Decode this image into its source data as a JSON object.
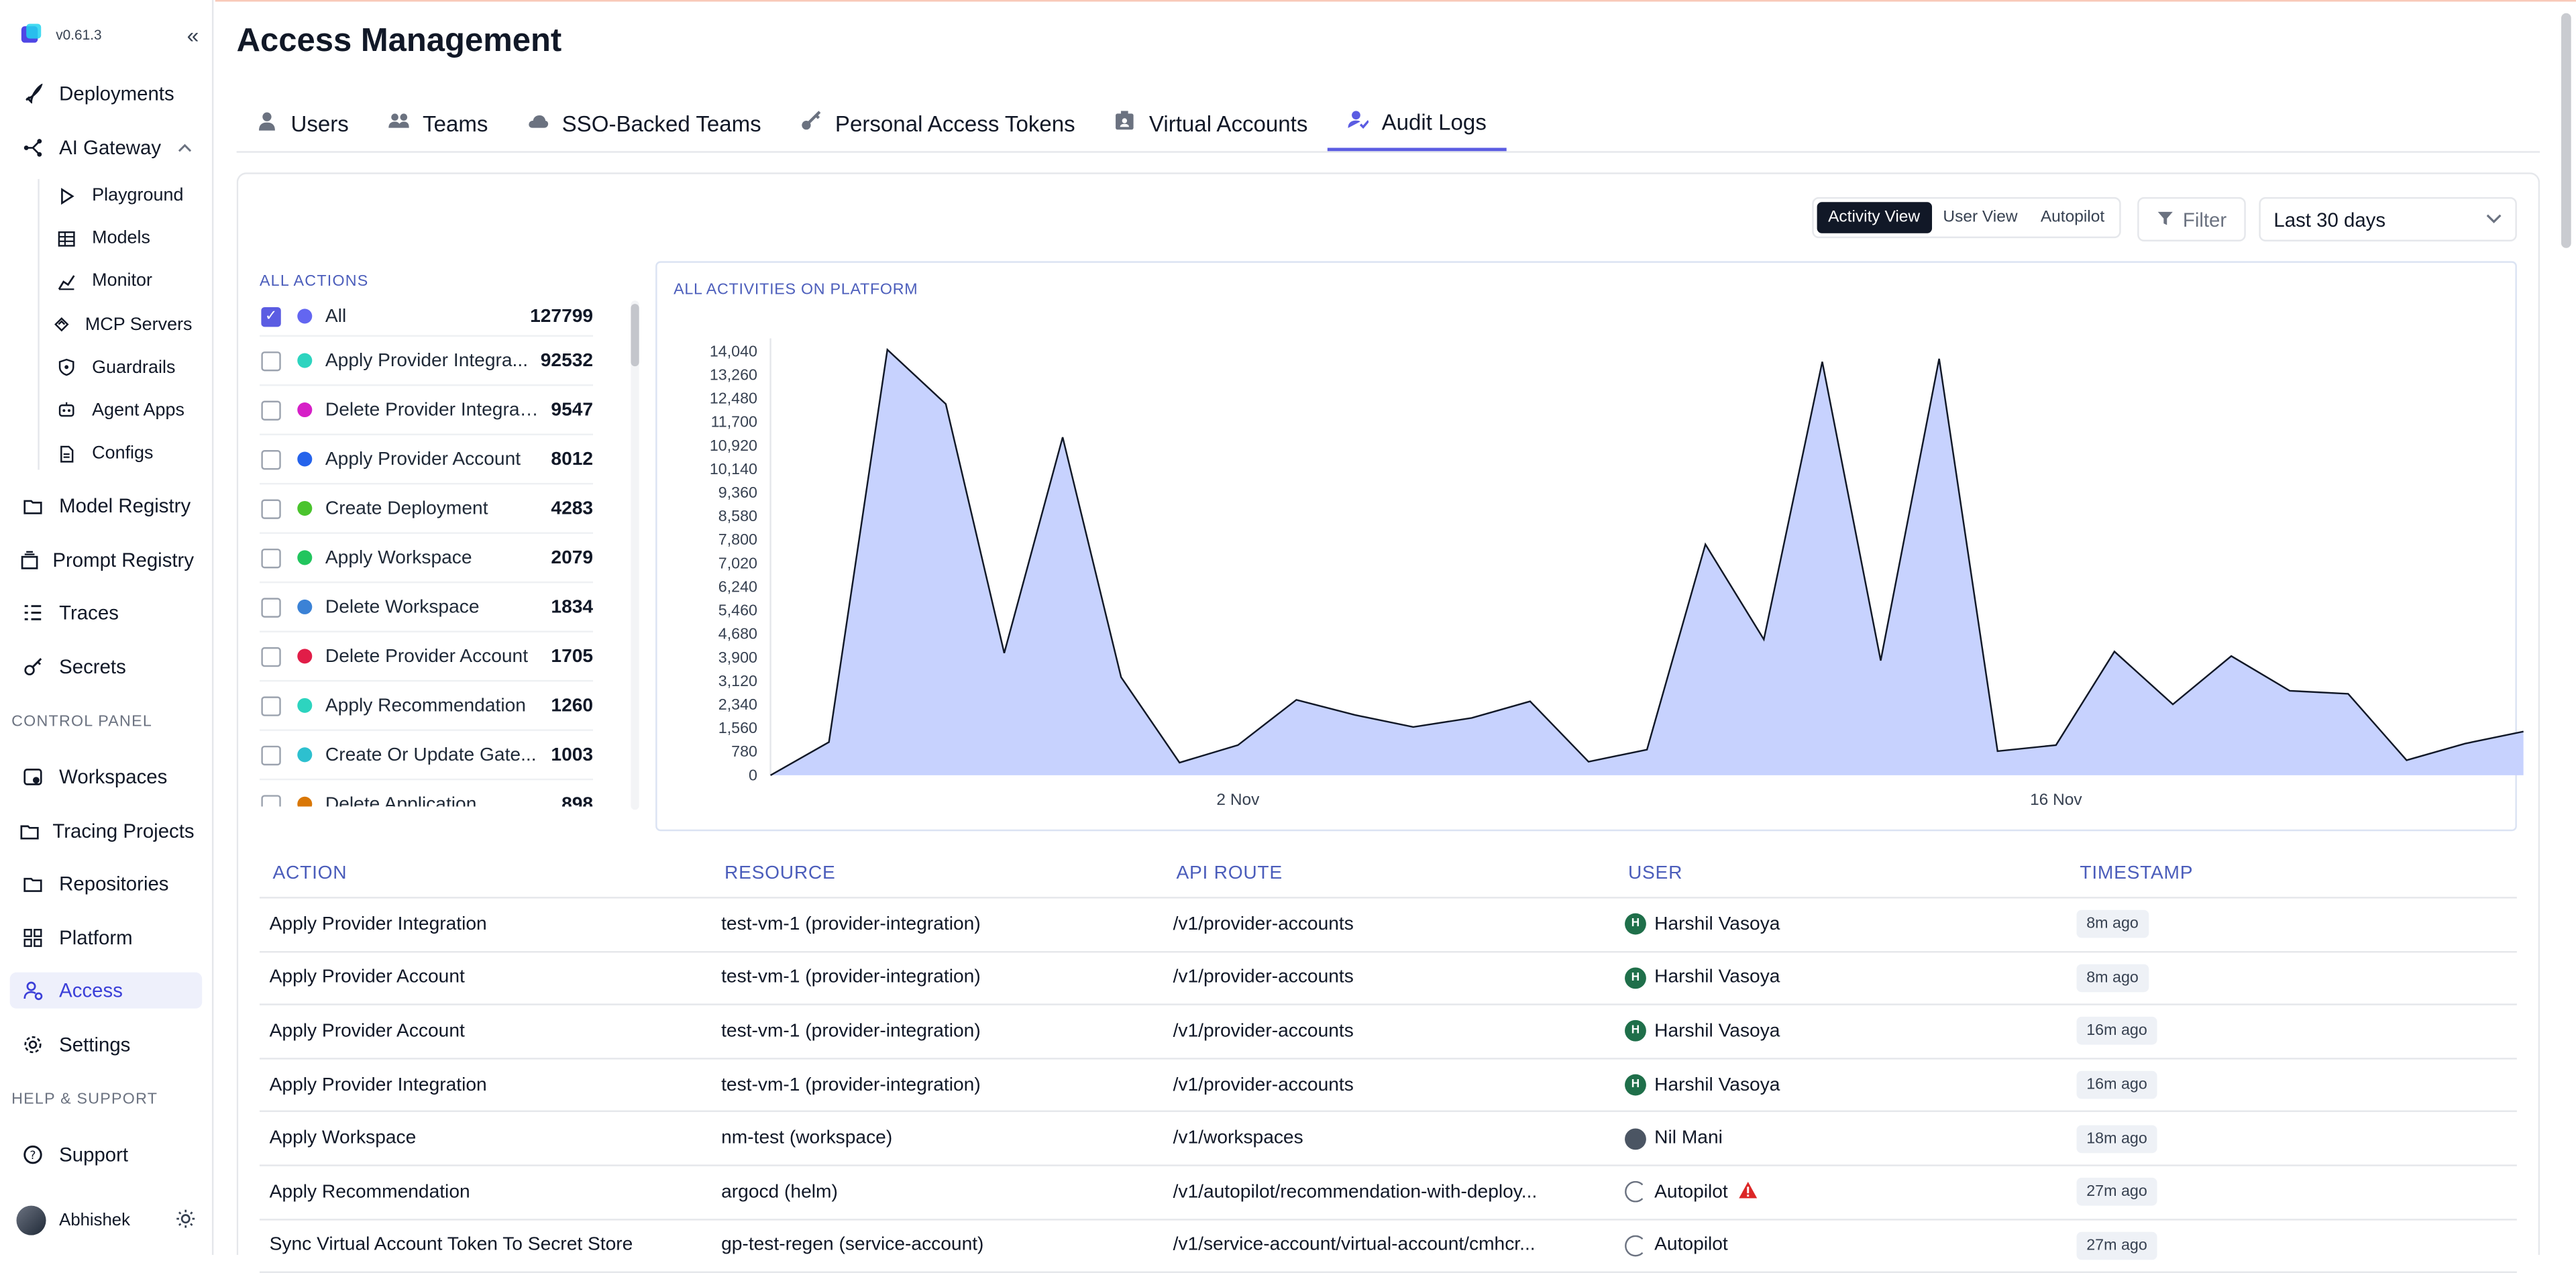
{
  "app": {
    "version": "v0.61.3"
  },
  "sidebar": {
    "items_top": [
      {
        "label": "Deployments",
        "icon": "rocket-icon"
      },
      {
        "label": "AI Gateway",
        "icon": "network-icon"
      }
    ],
    "gateway_sub": [
      {
        "label": "Playground",
        "icon": "play-icon"
      },
      {
        "label": "Models",
        "icon": "table-icon"
      },
      {
        "label": "Monitor",
        "icon": "chart-icon"
      },
      {
        "label": "MCP Servers",
        "icon": "mcp-icon"
      },
      {
        "label": "Guardrails",
        "icon": "shield-icon"
      },
      {
        "label": "Agent Apps",
        "icon": "bot-icon"
      },
      {
        "label": "Configs",
        "icon": "file-icon"
      }
    ],
    "items_mid": [
      {
        "label": "Model Registry",
        "icon": "folder-icon"
      },
      {
        "label": "Prompt Registry",
        "icon": "stack-icon"
      },
      {
        "label": "Traces",
        "icon": "list-icon"
      },
      {
        "label": "Secrets",
        "icon": "key-icon"
      }
    ],
    "control_panel_heading": "CONTROL PANEL",
    "control_items": [
      {
        "label": "Workspaces",
        "icon": "workspace-icon"
      },
      {
        "label": "Tracing Projects",
        "icon": "folder-icon"
      },
      {
        "label": "Repositories",
        "icon": "folder-icon"
      },
      {
        "label": "Platform",
        "icon": "grid-icon"
      },
      {
        "label": "Access",
        "icon": "user-lock-icon"
      },
      {
        "label": "Settings",
        "icon": "gear-icon"
      }
    ],
    "help_heading": "HELP & SUPPORT",
    "support": {
      "label": "Support",
      "icon": "help-icon"
    },
    "user": {
      "name": "Abhishek"
    }
  },
  "page": {
    "title": "Access Management",
    "tabs": [
      "Users",
      "Teams",
      "SSO-Backed Teams",
      "Personal Access Tokens",
      "Virtual Accounts",
      "Audit Logs"
    ],
    "active_tab": "Audit Logs"
  },
  "toolbar": {
    "views": [
      "Activity View",
      "User View",
      "Autopilot"
    ],
    "active_view": "Activity View",
    "filter_label": "Filter",
    "range": "Last 30 days"
  },
  "actions": {
    "heading": "ALL ACTIONS",
    "items": [
      {
        "label": "All",
        "count": "127799",
        "color": "#6366f1",
        "checked": true
      },
      {
        "label": "Apply Provider Integra...",
        "count": "92532",
        "color": "#2dd4bf",
        "checked": false
      },
      {
        "label": "Delete Provider Integrati...",
        "count": "9547",
        "color": "#d61fc7",
        "checked": false
      },
      {
        "label": "Apply Provider Account",
        "count": "8012",
        "color": "#2563eb",
        "checked": false
      },
      {
        "label": "Create Deployment",
        "count": "4283",
        "color": "#4ac42d",
        "checked": false
      },
      {
        "label": "Apply Workspace",
        "count": "2079",
        "color": "#22c55e",
        "checked": false
      },
      {
        "label": "Delete Workspace",
        "count": "1834",
        "color": "#3b82d6",
        "checked": false
      },
      {
        "label": "Delete Provider Account",
        "count": "1705",
        "color": "#e11d48",
        "checked": false
      },
      {
        "label": "Apply Recommendation",
        "count": "1260",
        "color": "#2dd4bf",
        "checked": false
      },
      {
        "label": "Create Or Update Gate...",
        "count": "1003",
        "color": "#2dc0cf",
        "checked": false
      },
      {
        "label": "Delete Application",
        "count": "898",
        "color": "#d97706",
        "checked": false
      }
    ]
  },
  "chart_data": {
    "type": "area",
    "title": "ALL ACTIVITIES ON PLATFORM",
    "ylim": [
      0,
      14040
    ],
    "yticks": [
      "0",
      "780",
      "1,560",
      "2,340",
      "3,120",
      "3,900",
      "4,680",
      "5,460",
      "6,240",
      "7,020",
      "7,800",
      "8,580",
      "9,360",
      "10,140",
      "10,920",
      "11,700",
      "12,480",
      "13,260",
      "14,040"
    ],
    "xtick_labels": [
      {
        "label": "2 Nov",
        "index": 8
      },
      {
        "label": "16 Nov",
        "index": 22
      }
    ],
    "values": [
      0,
      1100,
      14100,
      12300,
      4050,
      11200,
      3250,
      420,
      1000,
      2500,
      2000,
      1600,
      1900,
      2450,
      450,
      850,
      7650,
      4500,
      13700,
      3800,
      13800,
      800,
      1000,
      4100,
      2350,
      3950,
      2800,
      2700,
      500,
      1050,
      1450
    ],
    "fill": "#c7d2fe",
    "stroke": "#111827",
    "grid": false
  },
  "table": {
    "headers": [
      "ACTION",
      "RESOURCE",
      "API ROUTE",
      "USER",
      "TIMESTAMP"
    ],
    "rows": [
      {
        "action": "Apply Provider Integration",
        "resource": "test-vm-1 (provider-integration)",
        "route": "/v1/provider-accounts",
        "user": "Harshil Vasoya",
        "avatar": "H",
        "kind": "green",
        "ts": "8m ago"
      },
      {
        "action": "Apply Provider Account",
        "resource": "test-vm-1 (provider-integration)",
        "route": "/v1/provider-accounts",
        "user": "Harshil Vasoya",
        "avatar": "H",
        "kind": "green",
        "ts": "8m ago"
      },
      {
        "action": "Apply Provider Account",
        "resource": "test-vm-1 (provider-integration)",
        "route": "/v1/provider-accounts",
        "user": "Harshil Vasoya",
        "avatar": "H",
        "kind": "green",
        "ts": "16m ago"
      },
      {
        "action": "Apply Provider Integration",
        "resource": "test-vm-1 (provider-integration)",
        "route": "/v1/provider-accounts",
        "user": "Harshil Vasoya",
        "avatar": "H",
        "kind": "green",
        "ts": "16m ago"
      },
      {
        "action": "Apply Workspace",
        "resource": "nm-test (workspace)",
        "route": "/v1/workspaces",
        "user": "Nil Mani",
        "avatar": "",
        "kind": "dark",
        "ts": "18m ago"
      },
      {
        "action": "Apply Recommendation",
        "resource": "argocd (helm)",
        "route": "/v1/autopilot/recommendation-with-deploy...",
        "user": "Autopilot",
        "avatar": "",
        "kind": "ring",
        "warn": true,
        "ts": "27m ago"
      },
      {
        "action": "Sync Virtual Account Token To Secret Store",
        "resource": "gp-test-regen (service-account)",
        "route": "/v1/service-account/virtual-account/cmhcr...",
        "user": "Autopilot",
        "avatar": "",
        "kind": "ring",
        "ts": "27m ago"
      }
    ]
  }
}
